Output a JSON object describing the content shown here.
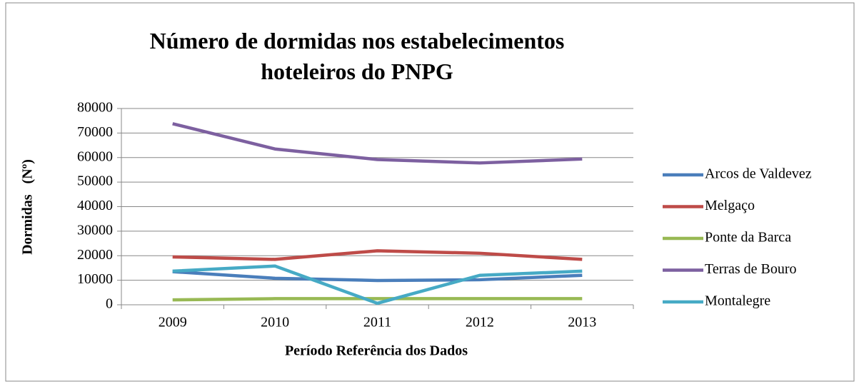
{
  "chart_data": {
    "type": "line",
    "title": "Número de dormidas nos estabelecimentos hoteleiros do PNPG",
    "xlabel": "Período Referência dos Dados",
    "ylabel": "Dormidas   (Nº)",
    "categories": [
      "2009",
      "2010",
      "2011",
      "2012",
      "2013"
    ],
    "series": [
      {
        "name": "Arcos de Valdevez",
        "color": "#4a7ebb",
        "values": [
          13500,
          10800,
          9900,
          10200,
          12000
        ]
      },
      {
        "name": "Melgaço",
        "color": "#be4b48",
        "values": [
          19500,
          18500,
          22000,
          21000,
          18500
        ]
      },
      {
        "name": "Ponte da Barca",
        "color": "#98b954",
        "values": [
          2000,
          2500,
          2500,
          2500,
          2500
        ]
      },
      {
        "name": "Terras de Bouro",
        "color": "#7d60a0",
        "values": [
          73800,
          63500,
          59200,
          57800,
          59400
        ]
      },
      {
        "name": "Montalegre",
        "color": "#46aac5",
        "values": [
          13700,
          15800,
          600,
          12000,
          13700
        ]
      }
    ],
    "ylim": [
      0,
      80000
    ],
    "yticks": [
      0,
      10000,
      20000,
      30000,
      40000,
      50000,
      60000,
      70000,
      80000
    ],
    "grid": true,
    "legend": "right"
  }
}
